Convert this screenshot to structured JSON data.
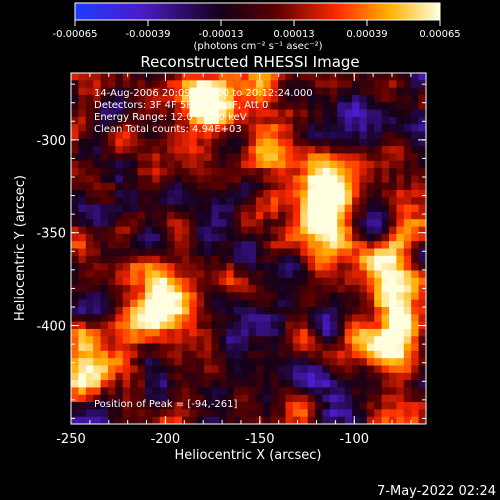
{
  "colorbar": {
    "ticks": [
      "-0.00065",
      "-0.00039",
      "-0.00013",
      "0.00013",
      "0.00039",
      "0.00065"
    ],
    "unit_label": "(photons cm⁻² s⁻¹ asec⁻²)"
  },
  "chart_data": {
    "type": "heatmap",
    "title": "Reconstructed RHESSI Image",
    "xlabel": "Heliocentric X (arcsec)",
    "ylabel": "Heliocentric Y (arcsec)",
    "xlim": [
      -250,
      -62
    ],
    "ylim": [
      -453,
      -264
    ],
    "x_ticks": [
      "-250",
      "-200",
      "-150",
      "-100"
    ],
    "y_ticks": [
      "-300",
      "-350",
      "-400"
    ],
    "colorscale_range": [
      -0.00065,
      0.00065
    ],
    "colormap": "blue-black-red-yellow-white",
    "info_lines": [
      "14-Aug-2006 20:09:48.000 to 20:12:24.000",
      "Detectors: 3F 4F 5F 6F 7F 8F, Att 0",
      "Energy Range: 12.0 - 25.0 keV",
      "Clean    Total counts: 4.94E+03"
    ],
    "peak_label": "Position of Peak = [-94,-261]",
    "peak_position": [
      -94,
      -261
    ],
    "bright_sources": [
      {
        "x": -180,
        "y": -278,
        "level": 0.9
      },
      {
        "x": -120,
        "y": -340,
        "level": 0.95
      },
      {
        "x": -78,
        "y": -410,
        "level": 0.95
      },
      {
        "x": -240,
        "y": -420,
        "level": 0.7
      },
      {
        "x": -200,
        "y": -385,
        "level": 0.75
      },
      {
        "x": -150,
        "y": -300,
        "level": 0.55
      },
      {
        "x": -85,
        "y": -370,
        "level": 0.6
      }
    ]
  },
  "footer": {
    "timestamp": "7-May-2022 02:24"
  },
  "colors": {
    "background": "#000000",
    "axis": "#ffffff"
  }
}
